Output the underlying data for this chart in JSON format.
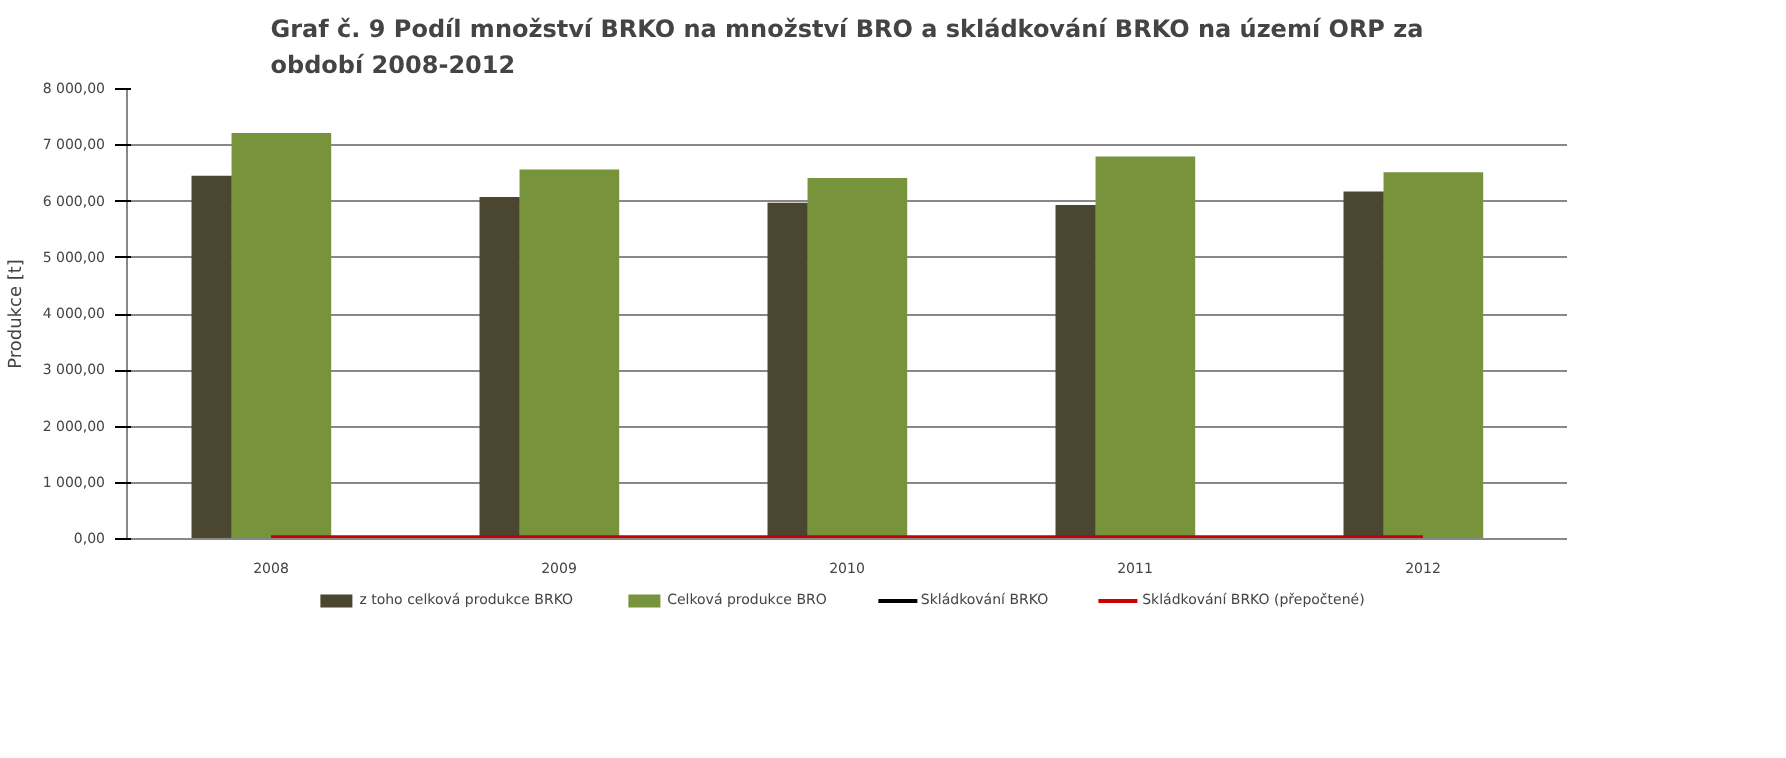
{
  "chart_data": {
    "type": "bar",
    "title": "Graf č. 9 Podíl množství BRKO na množství BRO a skládkování BRKO na území ORP za období 2008-2012",
    "ylabel": "Produkce [t]",
    "categories": [
      "2008",
      "2009",
      "2010",
      "2011",
      "2012"
    ],
    "series": [
      {
        "name": "z toho celková produkce BRKO",
        "color": "#4a4630",
        "values": [
          6460,
          6080,
          5980,
          5940,
          6180
        ]
      },
      {
        "name": "Celková produkce BRO",
        "color": "#77933c",
        "values": [
          7220,
          6570,
          6420,
          6800,
          6520
        ]
      },
      {
        "name": "Skládkování BRKO",
        "type": "line",
        "color": "#000000",
        "values": [
          null,
          null,
          null,
          null,
          null
        ]
      },
      {
        "name": "Skládkování BRKO (přepočtené)",
        "type": "line",
        "color": "#cc0000",
        "values": [
          30,
          30,
          30,
          30,
          30
        ]
      }
    ],
    "ylim": [
      0,
      8000
    ],
    "yticks": [
      {
        "value": 0,
        "label": "0,00"
      },
      {
        "value": 1000,
        "label": "1 000,00"
      },
      {
        "value": 2000,
        "label": "2 000,00"
      },
      {
        "value": 3000,
        "label": "3 000,00"
      },
      {
        "value": 4000,
        "label": "4 000,00"
      },
      {
        "value": 5000,
        "label": "5 000,00"
      },
      {
        "value": 6000,
        "label": "6 000,00"
      },
      {
        "value": 7000,
        "label": "7 000,00"
      },
      {
        "value": 8000,
        "label": "8 000,00"
      }
    ],
    "grid": "y",
    "legend": "bottom"
  }
}
